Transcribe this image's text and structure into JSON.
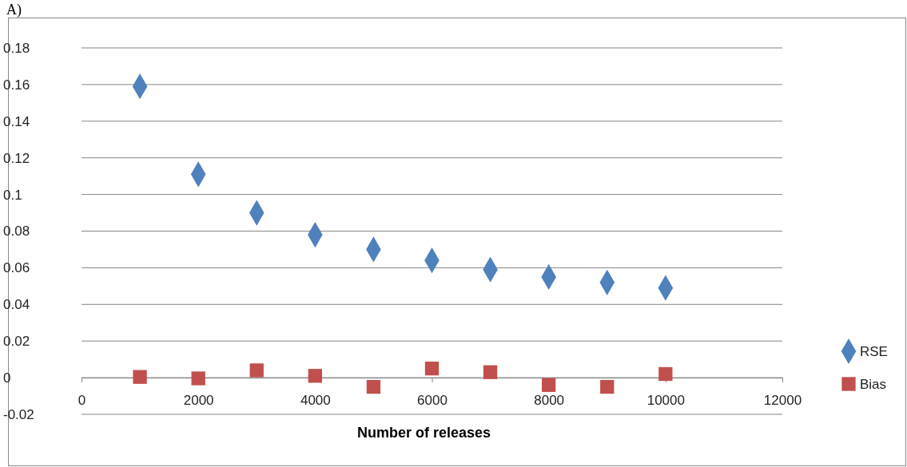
{
  "chart_data": {
    "type": "scatter",
    "xlabel": "Number of releases",
    "annotations": [
      "A)"
    ],
    "xlim": [
      0,
      12000
    ],
    "xticks": [
      0,
      2000,
      4000,
      6000,
      8000,
      10000,
      12000
    ],
    "ylim": [
      -0.02,
      0.18
    ],
    "yticks": [
      -0.02,
      0,
      0.02,
      0.04,
      0.06,
      0.08,
      0.1,
      0.12,
      0.14,
      0.16,
      0.18
    ],
    "grid": "y",
    "legend": "right",
    "x": [
      1000,
      2000,
      3000,
      4000,
      5000,
      6000,
      7000,
      8000,
      9000,
      10000
    ],
    "series": [
      {
        "name": "RSE",
        "color": "#4f81bd",
        "marker": "diamond",
        "values": [
          0.159,
          0.111,
          0.09,
          0.078,
          0.07,
          0.064,
          0.059,
          0.055,
          0.052,
          0.049
        ]
      },
      {
        "name": "Bias",
        "color": "#c0504d",
        "marker": "square",
        "values": [
          0.0004,
          -0.0004,
          0.004,
          0.001,
          -0.005,
          0.005,
          0.003,
          -0.004,
          -0.005,
          0.002
        ]
      }
    ]
  }
}
